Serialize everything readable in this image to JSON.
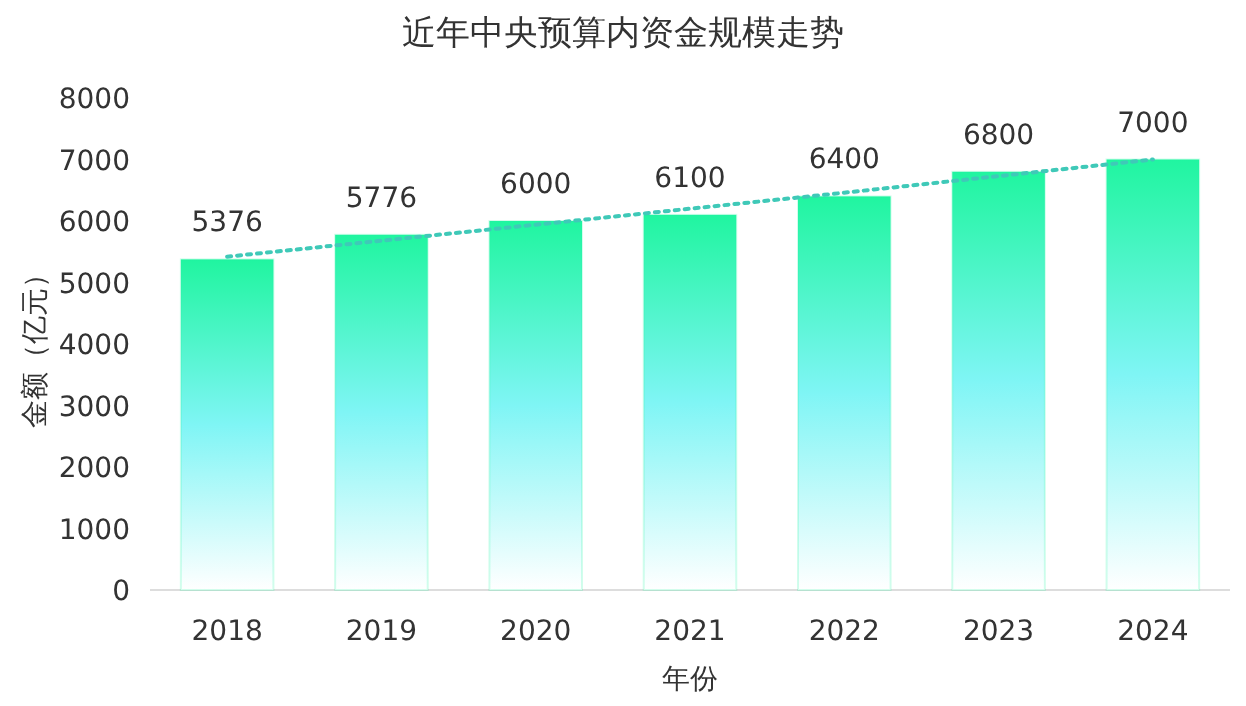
{
  "chart_data": {
    "type": "bar",
    "title": "近年中央预算内资金规模走势",
    "xlabel": "年份",
    "ylabel": "金额（亿元）",
    "categories": [
      "2018",
      "2019",
      "2020",
      "2021",
      "2022",
      "2023",
      "2024"
    ],
    "series": [
      {
        "color": "#20f5a0",
        "values": [
          5376,
          5776,
          6000,
          6100,
          6400,
          6800,
          7000
        ],
        "value_labels": [
          "5376",
          "5776",
          "6000",
          "6100",
          "6400",
          "6800",
          "7000"
        ]
      },
      {
        "type": "line",
        "color": "#3fc9b8",
        "line_style": "dotted",
        "values": [
          5420,
          5680,
          5940,
          6200,
          6460,
          6730,
          7000
        ]
      }
    ],
    "ylim": [
      0,
      8000
    ],
    "yticks": [
      0,
      1000,
      2000,
      3000,
      4000,
      5000,
      6000,
      7000,
      8000
    ],
    "grid": false
  }
}
